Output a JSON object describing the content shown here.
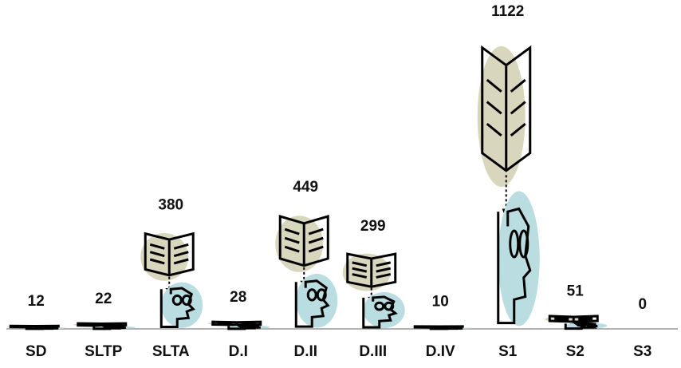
{
  "chart_data": {
    "type": "pictograph",
    "categories": [
      "SD",
      "SLTP",
      "SLTA",
      "D.I",
      "D.II",
      "D.III",
      "D.IV",
      "S1",
      "S2",
      "S3"
    ],
    "values": [
      12,
      22,
      380,
      28,
      449,
      299,
      10,
      1122,
      51,
      0
    ]
  }
}
